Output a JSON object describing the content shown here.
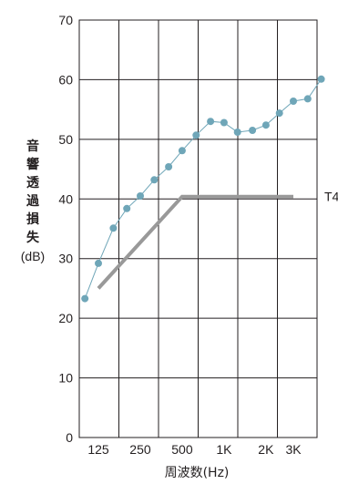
{
  "chart_data": {
    "type": "line",
    "title": "",
    "ylabel": "音響透過損失",
    "ylabel_unit": "(dB)",
    "xlabel": "周波数(Hz)",
    "ylim": [
      0,
      70
    ],
    "y_ticks": [
      "0",
      "10",
      "20",
      "30",
      "40",
      "50",
      "60",
      "70"
    ],
    "x_tick_labels": [
      "125",
      "250",
      "500",
      "1K",
      "2K",
      "3K"
    ],
    "x_scale": "log",
    "xlim": [
      100,
      4000
    ],
    "grid": true,
    "series": [
      {
        "name": "",
        "color": "#6fa6b8",
        "points": [
          {
            "x": 100,
            "y": 23.3
          },
          {
            "x": 125,
            "y": 29.2
          },
          {
            "x": 160,
            "y": 35.1
          },
          {
            "x": 200,
            "y": 38.4
          },
          {
            "x": 250,
            "y": 40.5
          },
          {
            "x": 315,
            "y": 43.2
          },
          {
            "x": 400,
            "y": 45.4
          },
          {
            "x": 500,
            "y": 48.1
          },
          {
            "x": 630,
            "y": 50.7
          },
          {
            "x": 800,
            "y": 53.0
          },
          {
            "x": 1000,
            "y": 52.8
          },
          {
            "x": 1250,
            "y": 51.2
          },
          {
            "x": 1600,
            "y": 51.5
          },
          {
            "x": 2000,
            "y": 52.4
          },
          {
            "x": 2500,
            "y": 54.4
          },
          {
            "x": 3150,
            "y": 56.4
          },
          {
            "x": 4000,
            "y": 56.8
          },
          {
            "x": 5000,
            "y": 60.1
          }
        ]
      },
      {
        "name": "T4",
        "color": "#999999",
        "points": [
          {
            "x": 125,
            "y": 25
          },
          {
            "x": 500,
            "y": 40.4
          },
          {
            "x": 3150,
            "y": 40.4
          }
        ]
      }
    ]
  }
}
